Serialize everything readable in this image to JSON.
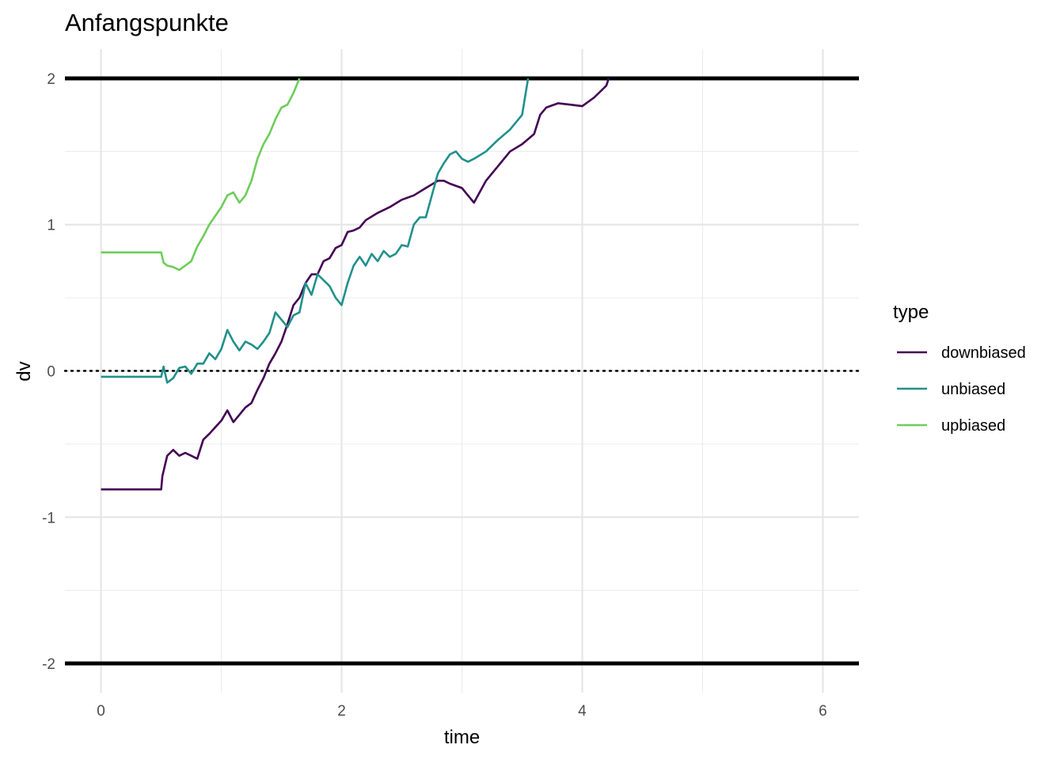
{
  "chart_data": {
    "type": "line",
    "title": "Anfangspunkte",
    "xlabel": "time",
    "ylabel": "dv",
    "xlim": [
      -0.3,
      6.3
    ],
    "ylim": [
      -2.2,
      2.2
    ],
    "xticks": [
      0,
      2,
      4,
      6
    ],
    "yticks": [
      -2,
      -1,
      0,
      1,
      2
    ],
    "x_tick_labels": [
      "0",
      "2",
      "4",
      "6"
    ],
    "y_tick_labels": [
      "-2",
      "-1",
      "0",
      "1",
      "2"
    ],
    "grid": true,
    "reference_lines": [
      {
        "y": 2,
        "style": "solid",
        "color": "#000000"
      },
      {
        "y": -2,
        "style": "solid",
        "color": "#000000"
      },
      {
        "y": 0,
        "style": "dotted",
        "color": "#000000"
      }
    ],
    "legend": {
      "title": "type",
      "placement": "right"
    },
    "series": [
      {
        "name": "downbiased",
        "color": "#440154",
        "x": [
          0,
          0.5,
          0.51,
          0.55,
          0.6,
          0.65,
          0.7,
          0.75,
          0.8,
          0.85,
          0.9,
          1.0,
          1.05,
          1.1,
          1.2,
          1.25,
          1.3,
          1.35,
          1.4,
          1.45,
          1.5,
          1.55,
          1.6,
          1.65,
          1.7,
          1.75,
          1.8,
          1.85,
          1.9,
          1.95,
          2.0,
          2.05,
          2.1,
          2.15,
          2.2,
          2.3,
          2.4,
          2.5,
          2.6,
          2.7,
          2.8,
          2.85,
          2.9,
          3.0,
          3.05,
          3.1,
          3.2,
          3.3,
          3.4,
          3.5,
          3.6,
          3.65,
          3.7,
          3.8,
          3.9,
          4.0,
          4.1,
          4.2,
          4.22
        ],
        "y": [
          -0.81,
          -0.81,
          -0.72,
          -0.58,
          -0.54,
          -0.58,
          -0.56,
          -0.58,
          -0.6,
          -0.47,
          -0.43,
          -0.34,
          -0.27,
          -0.35,
          -0.25,
          -0.22,
          -0.13,
          -0.05,
          0.05,
          0.12,
          0.2,
          0.32,
          0.45,
          0.5,
          0.6,
          0.66,
          0.66,
          0.75,
          0.77,
          0.84,
          0.86,
          0.95,
          0.96,
          0.98,
          1.03,
          1.08,
          1.12,
          1.17,
          1.2,
          1.25,
          1.3,
          1.3,
          1.28,
          1.25,
          1.2,
          1.15,
          1.3,
          1.4,
          1.5,
          1.55,
          1.62,
          1.75,
          1.8,
          1.83,
          1.82,
          1.81,
          1.87,
          1.95,
          2.0
        ]
      },
      {
        "name": "unbiased",
        "color": "#21908C",
        "x": [
          0,
          0.5,
          0.52,
          0.55,
          0.6,
          0.65,
          0.7,
          0.75,
          0.8,
          0.85,
          0.9,
          0.95,
          1.0,
          1.05,
          1.1,
          1.15,
          1.2,
          1.25,
          1.3,
          1.35,
          1.4,
          1.45,
          1.5,
          1.55,
          1.6,
          1.65,
          1.7,
          1.75,
          1.8,
          1.85,
          1.9,
          1.95,
          2.0,
          2.05,
          2.1,
          2.15,
          2.2,
          2.25,
          2.3,
          2.35,
          2.4,
          2.45,
          2.5,
          2.55,
          2.6,
          2.65,
          2.7,
          2.75,
          2.8,
          2.85,
          2.9,
          2.95,
          3.0,
          3.05,
          3.1,
          3.2,
          3.3,
          3.4,
          3.5,
          3.55
        ],
        "y": [
          -0.04,
          -0.04,
          0.03,
          -0.08,
          -0.05,
          0.02,
          0.03,
          -0.02,
          0.05,
          0.05,
          0.12,
          0.08,
          0.15,
          0.28,
          0.2,
          0.14,
          0.2,
          0.18,
          0.15,
          0.2,
          0.26,
          0.4,
          0.35,
          0.3,
          0.38,
          0.4,
          0.6,
          0.52,
          0.66,
          0.62,
          0.58,
          0.5,
          0.45,
          0.6,
          0.72,
          0.78,
          0.72,
          0.8,
          0.75,
          0.82,
          0.78,
          0.8,
          0.86,
          0.85,
          1.0,
          1.05,
          1.05,
          1.2,
          1.35,
          1.42,
          1.48,
          1.5,
          1.45,
          1.43,
          1.45,
          1.5,
          1.58,
          1.65,
          1.75,
          2.0
        ]
      },
      {
        "name": "upbiased",
        "color": "#6DCD59",
        "x": [
          0,
          0.5,
          0.52,
          0.55,
          0.6,
          0.65,
          0.7,
          0.75,
          0.8,
          0.85,
          0.9,
          0.95,
          1.0,
          1.05,
          1.1,
          1.15,
          1.2,
          1.25,
          1.3,
          1.35,
          1.4,
          1.45,
          1.5,
          1.55,
          1.6,
          1.65
        ],
        "y": [
          0.81,
          0.81,
          0.74,
          0.72,
          0.71,
          0.69,
          0.72,
          0.75,
          0.85,
          0.92,
          1.0,
          1.06,
          1.12,
          1.2,
          1.22,
          1.15,
          1.2,
          1.3,
          1.45,
          1.55,
          1.62,
          1.72,
          1.8,
          1.82,
          1.9,
          2.0
        ]
      }
    ]
  }
}
